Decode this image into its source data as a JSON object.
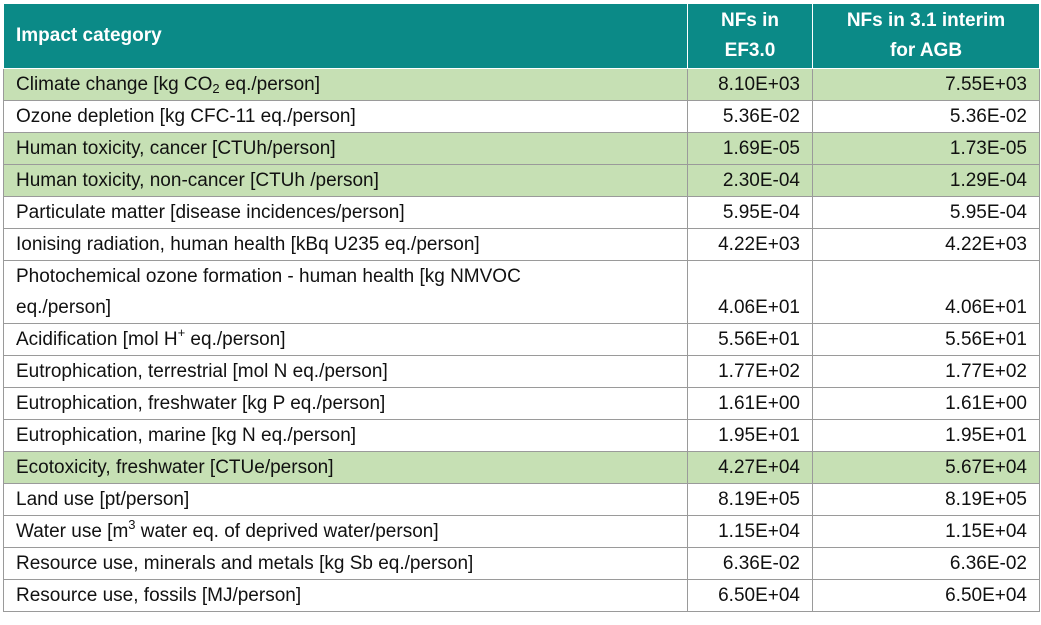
{
  "colors": {
    "header_bg": "#0b8a87",
    "highlight_bg": "#c6e0b4"
  },
  "header": {
    "col1": "Impact category",
    "col2_line1": "NFs in",
    "col2_line2": "EF3.0",
    "col3_line1": "NFs in 3.1 interim",
    "col3_line2": "for AGB"
  },
  "rows": [
    {
      "pre": "Climate change [kg CO",
      "sub": "2",
      "post": " eq./person]",
      "ef30": "8.10E+03",
      "ef31": "7.55E+03",
      "highlight": true
    },
    {
      "name": "Ozone depletion [kg CFC-11 eq./person]",
      "ef30": "5.36E-02",
      "ef31": "5.36E-02",
      "highlight": false
    },
    {
      "name": "Human toxicity, cancer [CTUh/person]",
      "ef30": "1.69E-05",
      "ef31": "1.73E-05",
      "highlight": true
    },
    {
      "name": "Human toxicity, non-cancer [CTUh /person]",
      "ef30": "2.30E-04",
      "ef31": "1.29E-04",
      "highlight": true
    },
    {
      "name": "Particulate matter [disease incidences/person]",
      "ef30": "5.95E-04",
      "ef31": "5.95E-04",
      "highlight": false
    },
    {
      "name": "Ionising radiation, human health [kBq U235 eq./person]",
      "ef30": "4.22E+03",
      "ef31": "4.22E+03",
      "highlight": false
    },
    {
      "name_line1": "Photochemical ozone formation - human health [kg NMVOC",
      "name_line2": "eq./person]",
      "ef30": "4.06E+01",
      "ef31": "4.06E+01",
      "highlight": false
    },
    {
      "pre": "Acidification [mol H",
      "sup": "+",
      "post": " eq./person]",
      "ef30": "5.56E+01",
      "ef31": "5.56E+01",
      "highlight": false
    },
    {
      "name": "Eutrophication, terrestrial [mol N eq./person]",
      "ef30": "1.77E+02",
      "ef31": "1.77E+02",
      "highlight": false
    },
    {
      "name": "Eutrophication, freshwater [kg P eq./person]",
      "ef30": "1.61E+00",
      "ef31": "1.61E+00",
      "highlight": false
    },
    {
      "name": "Eutrophication, marine [kg N eq./person]",
      "ef30": "1.95E+01",
      "ef31": "1.95E+01",
      "highlight": false
    },
    {
      "name": "Ecotoxicity, freshwater [CTUe/person]",
      "ef30": "4.27E+04",
      "ef31": "5.67E+04",
      "highlight": true
    },
    {
      "name": "Land use [pt/person]",
      "ef30": "8.19E+05",
      "ef31": "8.19E+05",
      "highlight": false
    },
    {
      "pre": "Water use [m",
      "sup": "3",
      "post": " water eq. of deprived water/person]",
      "ef30": "1.15E+04",
      "ef31": "1.15E+04",
      "highlight": false
    },
    {
      "name": "Resource use, minerals and metals [kg Sb eq./person]",
      "ef30": "6.36E-02",
      "ef31": "6.36E-02",
      "highlight": false
    },
    {
      "name": "Resource use, fossils [MJ/person]",
      "ef30": "6.50E+04",
      "ef31": "6.50E+04",
      "highlight": false
    }
  ]
}
